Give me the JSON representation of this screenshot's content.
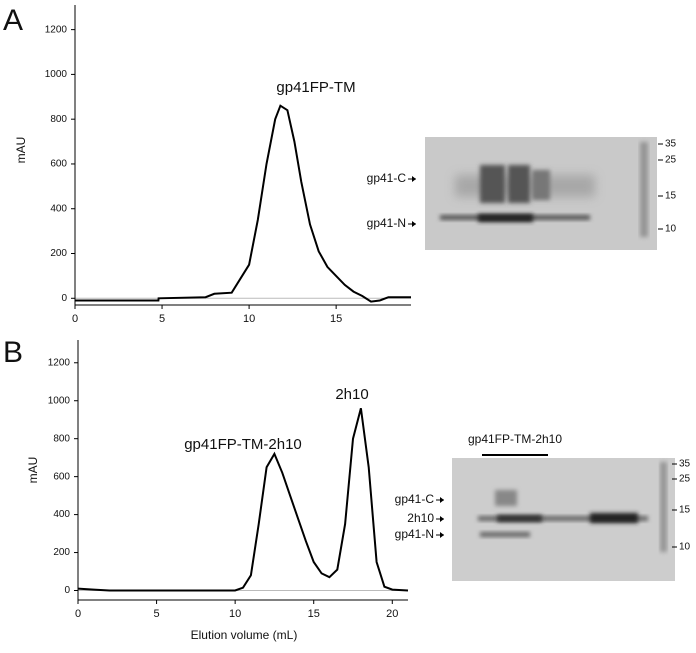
{
  "panel_labels": [
    "A",
    "B"
  ],
  "chart_data": [
    {
      "type": "line",
      "ylabel": "mAU",
      "annotations": [
        "gp41FP-TM"
      ],
      "x": [
        0,
        4.79,
        4.8,
        7.5,
        8,
        9,
        10,
        10.5,
        11,
        11.5,
        11.8,
        12.2,
        12.6,
        13,
        13.5,
        14,
        14.5,
        15,
        15.5,
        16,
        16.5,
        17,
        17.5,
        18,
        19.3
      ],
      "series": [
        {
          "color": "#000000",
          "values": [
            -10,
            -10,
            0,
            5,
            20,
            25,
            150,
            350,
            600,
            800,
            860,
            840,
            700,
            520,
            330,
            210,
            140,
            100,
            60,
            30,
            10,
            -15,
            -10,
            5,
            5
          ]
        }
      ],
      "xlim": [
        0,
        19.3
      ],
      "ylim": [
        -30,
        1310
      ],
      "xticks": [
        0,
        5,
        10,
        15
      ],
      "yticks": [
        0,
        200,
        400,
        600,
        800,
        1000,
        1200
      ]
    },
    {
      "type": "line",
      "ylabel": "mAU",
      "xlabel": "Elution volume (mL)",
      "annotations": [
        "gp41FP-TM-2h10",
        "2h10"
      ],
      "x": [
        0,
        1,
        2,
        10,
        10.5,
        11,
        11.5,
        12,
        12.5,
        13,
        13.5,
        14,
        14.5,
        15,
        15.5,
        16,
        16.5,
        17,
        17.5,
        18,
        18.5,
        19,
        19.5,
        20,
        21
      ],
      "series": [
        {
          "color": "#000000",
          "values": [
            10,
            5,
            0,
            0,
            15,
            80,
            350,
            650,
            720,
            620,
            500,
            380,
            260,
            150,
            90,
            70,
            110,
            350,
            800,
            960,
            650,
            150,
            20,
            5,
            0
          ]
        }
      ],
      "xlim": [
        0,
        21
      ],
      "ylim": [
        -50,
        1320
      ],
      "xticks": [
        0,
        5,
        10,
        15,
        20
      ],
      "yticks": [
        0,
        200,
        400,
        600,
        800,
        1000,
        1200
      ]
    }
  ],
  "gels": [
    {
      "bands": [
        "gp41-C",
        "gp41-N"
      ],
      "markers": [
        35,
        25,
        15,
        10
      ]
    },
    {
      "header": "gp41FP-TM-2h10",
      "bands": [
        "gp41-C",
        "2h10",
        "gp41-N"
      ],
      "markers": [
        35,
        25,
        15,
        10
      ]
    }
  ]
}
